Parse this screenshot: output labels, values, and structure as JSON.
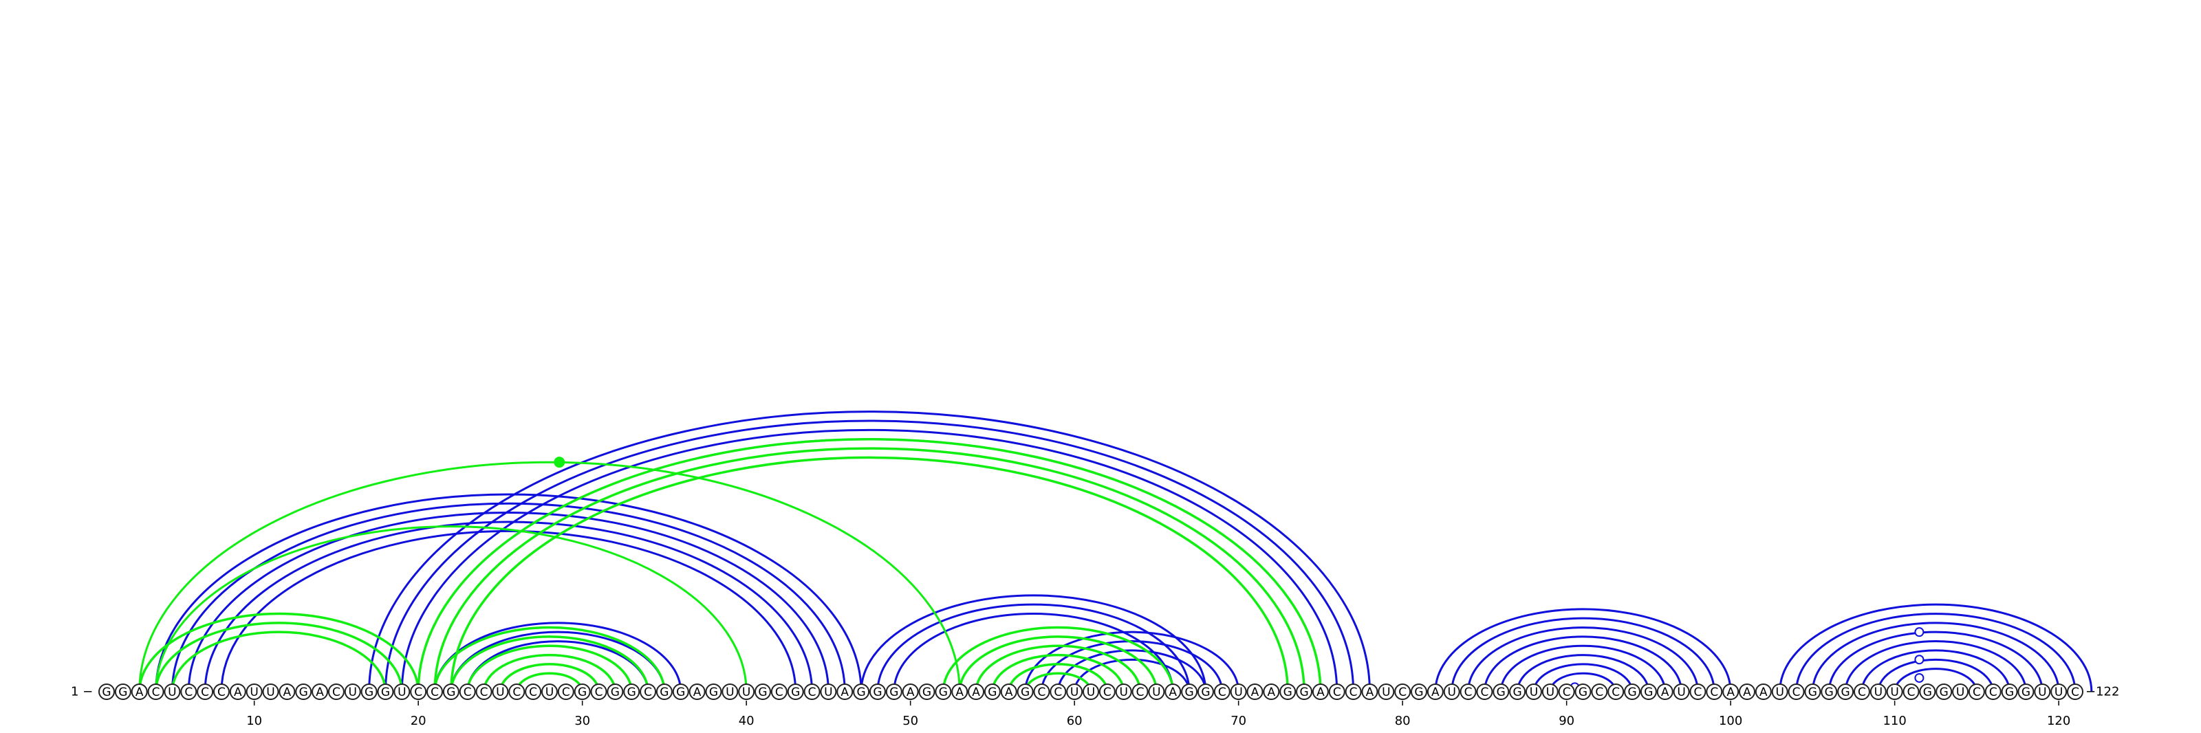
{
  "diagram": {
    "sequence": "GGACUCCCAUUAGACUGGUCCGCCUCCUCGCGGCGGAGUUGCGCUAGGGAGGAAGAGCCUUCUCUAGGCUAAGGACCAUCGAUCCGGUUCGCCGGAUCCAAAUCGGGCUUCGGUCCGGUUC",
    "start_label": "1",
    "end_label": "122",
    "start_marker": "1 −",
    "end_marker": "−122",
    "ticks": [
      10,
      20,
      30,
      40,
      50,
      60,
      70,
      80,
      90,
      100,
      110,
      120
    ],
    "colors": {
      "blue": "#1010dd",
      "green": "#11ee11"
    },
    "blue_helices": [
      {
        "i": 4,
        "j": 47,
        "n": 5
      },
      {
        "i": 17,
        "j": 78,
        "n": 4
      },
      {
        "i": 21,
        "j": 36,
        "n": 3
      },
      {
        "i": 24,
        "j": 32,
        "n": 2
      },
      {
        "i": 47,
        "j": 68,
        "n": 3
      },
      {
        "i": 57,
        "j": 70,
        "n": 4
      },
      {
        "i": 82,
        "j": 100,
        "n": 8
      },
      {
        "i": 103,
        "j": 122,
        "n": 8
      }
    ],
    "green_helices": [
      {
        "i": 3,
        "j": 20,
        "n": 3
      },
      {
        "i": 20,
        "j": 75,
        "n": 3
      },
      {
        "i": 21,
        "j": 35,
        "n": 6
      },
      {
        "i": 52,
        "j": 66,
        "n": 4
      },
      {
        "i": 56,
        "j": 62,
        "n": 2
      }
    ],
    "green_single_arcs": [
      {
        "i": 3,
        "j": 53
      },
      {
        "i": 4,
        "j": 40
      }
    ],
    "markers": [
      {
        "pos": 28.6,
        "color": "green",
        "filled": true,
        "on": "apex",
        "i": 3,
        "j": 53
      },
      {
        "pos": 90.5,
        "color": "blue",
        "filled": false,
        "on": "apex",
        "i": 90,
        "j": 91
      },
      {
        "pos": 111.5,
        "color": "blue",
        "filled": false,
        "on": "apex",
        "i": 110,
        "j": 113
      },
      {
        "pos": 111.5,
        "color": "blue",
        "filled": false,
        "on": "apex",
        "i": 108,
        "j": 115
      },
      {
        "pos": 111.5,
        "color": "blue",
        "filled": false,
        "on": "apex",
        "i": 105,
        "j": 118
      }
    ]
  }
}
